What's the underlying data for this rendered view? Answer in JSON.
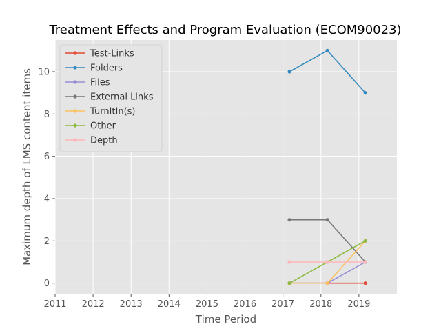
{
  "chart_data": {
    "type": "line",
    "title": "Treatment Effects and Program Evaluation (ECOM90023)",
    "xlabel": "Time Period",
    "ylabel": "Maximum depth of LMS content items",
    "xlim": [
      2011,
      2020
    ],
    "ylim": [
      -0.5,
      11.5
    ],
    "xticks": [
      2011,
      2012,
      2013,
      2014,
      2015,
      2016,
      2017,
      2018,
      2019
    ],
    "yticks": [
      0,
      2,
      4,
      6,
      8,
      10
    ],
    "grid": true,
    "legend_position": "top-left",
    "series": [
      {
        "name": "Test-Links",
        "color": "#E24A33",
        "x": [
          2017.17,
          2018.17,
          2019.17
        ],
        "y": [
          0,
          0,
          0
        ]
      },
      {
        "name": "Folders",
        "color": "#348ABD",
        "x": [
          2017.17,
          2018.17,
          2019.17
        ],
        "y": [
          10,
          11,
          9
        ]
      },
      {
        "name": "Files",
        "color": "#988ED5",
        "x": [
          2017.17,
          2018.17,
          2019.17
        ],
        "y": [
          0,
          0,
          1
        ]
      },
      {
        "name": "External Links",
        "color": "#777777",
        "x": [
          2017.17,
          2018.17,
          2019.17
        ],
        "y": [
          3,
          3,
          1
        ]
      },
      {
        "name": "TurnItIn(s)",
        "color": "#FBC15E",
        "x": [
          2017.17,
          2018.17,
          2019.17
        ],
        "y": [
          0,
          0,
          2
        ]
      },
      {
        "name": "Other",
        "color": "#8EBA42",
        "x": [
          2017.17,
          2018.17,
          2019.17
        ],
        "y": [
          0,
          1,
          2
        ]
      },
      {
        "name": "Depth",
        "color": "#FFB5B8",
        "x": [
          2017.17,
          2018.17,
          2019.17
        ],
        "y": [
          1,
          1,
          1
        ]
      }
    ]
  }
}
